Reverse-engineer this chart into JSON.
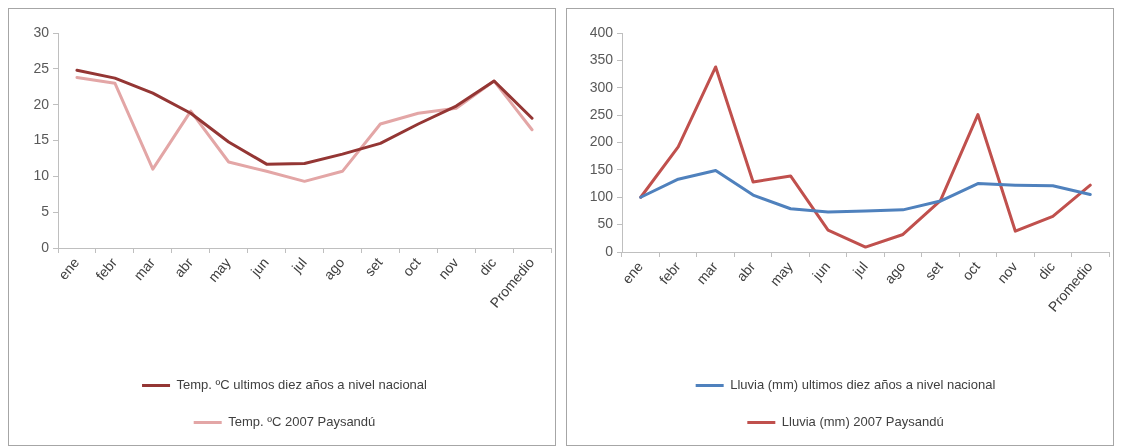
{
  "chart_data": [
    {
      "type": "line",
      "categories": [
        "ene",
        "febr",
        "mar",
        "abr",
        "may",
        "jun",
        "jul",
        "ago",
        "set",
        "oct",
        "nov",
        "dic",
        "Promedio"
      ],
      "series": [
        {
          "name": "Temp. ºC ultimos diez años a nivel nacional",
          "color": "#943634",
          "values": [
            24.8,
            23.7,
            21.6,
            18.8,
            14.8,
            11.7,
            11.8,
            13.1,
            14.6,
            17.3,
            19.8,
            23.3,
            18.1
          ]
        },
        {
          "name": "Temp. ºC 2007 Paysandú",
          "color": "#e3a6a6",
          "values": [
            23.8,
            23.0,
            11.0,
            19.1,
            12.0,
            10.7,
            9.3,
            10.7,
            17.3,
            18.8,
            19.5,
            23.3,
            16.5
          ]
        }
      ],
      "ylim": [
        0,
        30
      ],
      "yticks": [
        0,
        5,
        10,
        15,
        20,
        25,
        30
      ],
      "grid": false,
      "legend": "bottom",
      "marker": "none"
    },
    {
      "type": "line",
      "categories": [
        "ene",
        "febr",
        "mar",
        "abr",
        "may",
        "jun",
        "jul",
        "ago",
        "set",
        "oct",
        "nov",
        "dic",
        "Promedio"
      ],
      "series": [
        {
          "name": "Lluvia (mm) ultimos diez años a nivel nacional",
          "color": "#4f81bd",
          "values": [
            100,
            133,
            149,
            104,
            79,
            73,
            75,
            77,
            93,
            125,
            122,
            121,
            105
          ]
        },
        {
          "name": "Lluvia (mm) 2007 Paysandú",
          "color": "#c0504d",
          "values": [
            100,
            192,
            338,
            128,
            139,
            40,
            9,
            32,
            94,
            251,
            38,
            65,
            122
          ]
        }
      ],
      "ylim": [
        0,
        400
      ],
      "yticks": [
        0,
        50,
        100,
        150,
        200,
        250,
        300,
        350,
        400
      ],
      "grid": false,
      "legend": "bottom",
      "marker": "none"
    }
  ]
}
